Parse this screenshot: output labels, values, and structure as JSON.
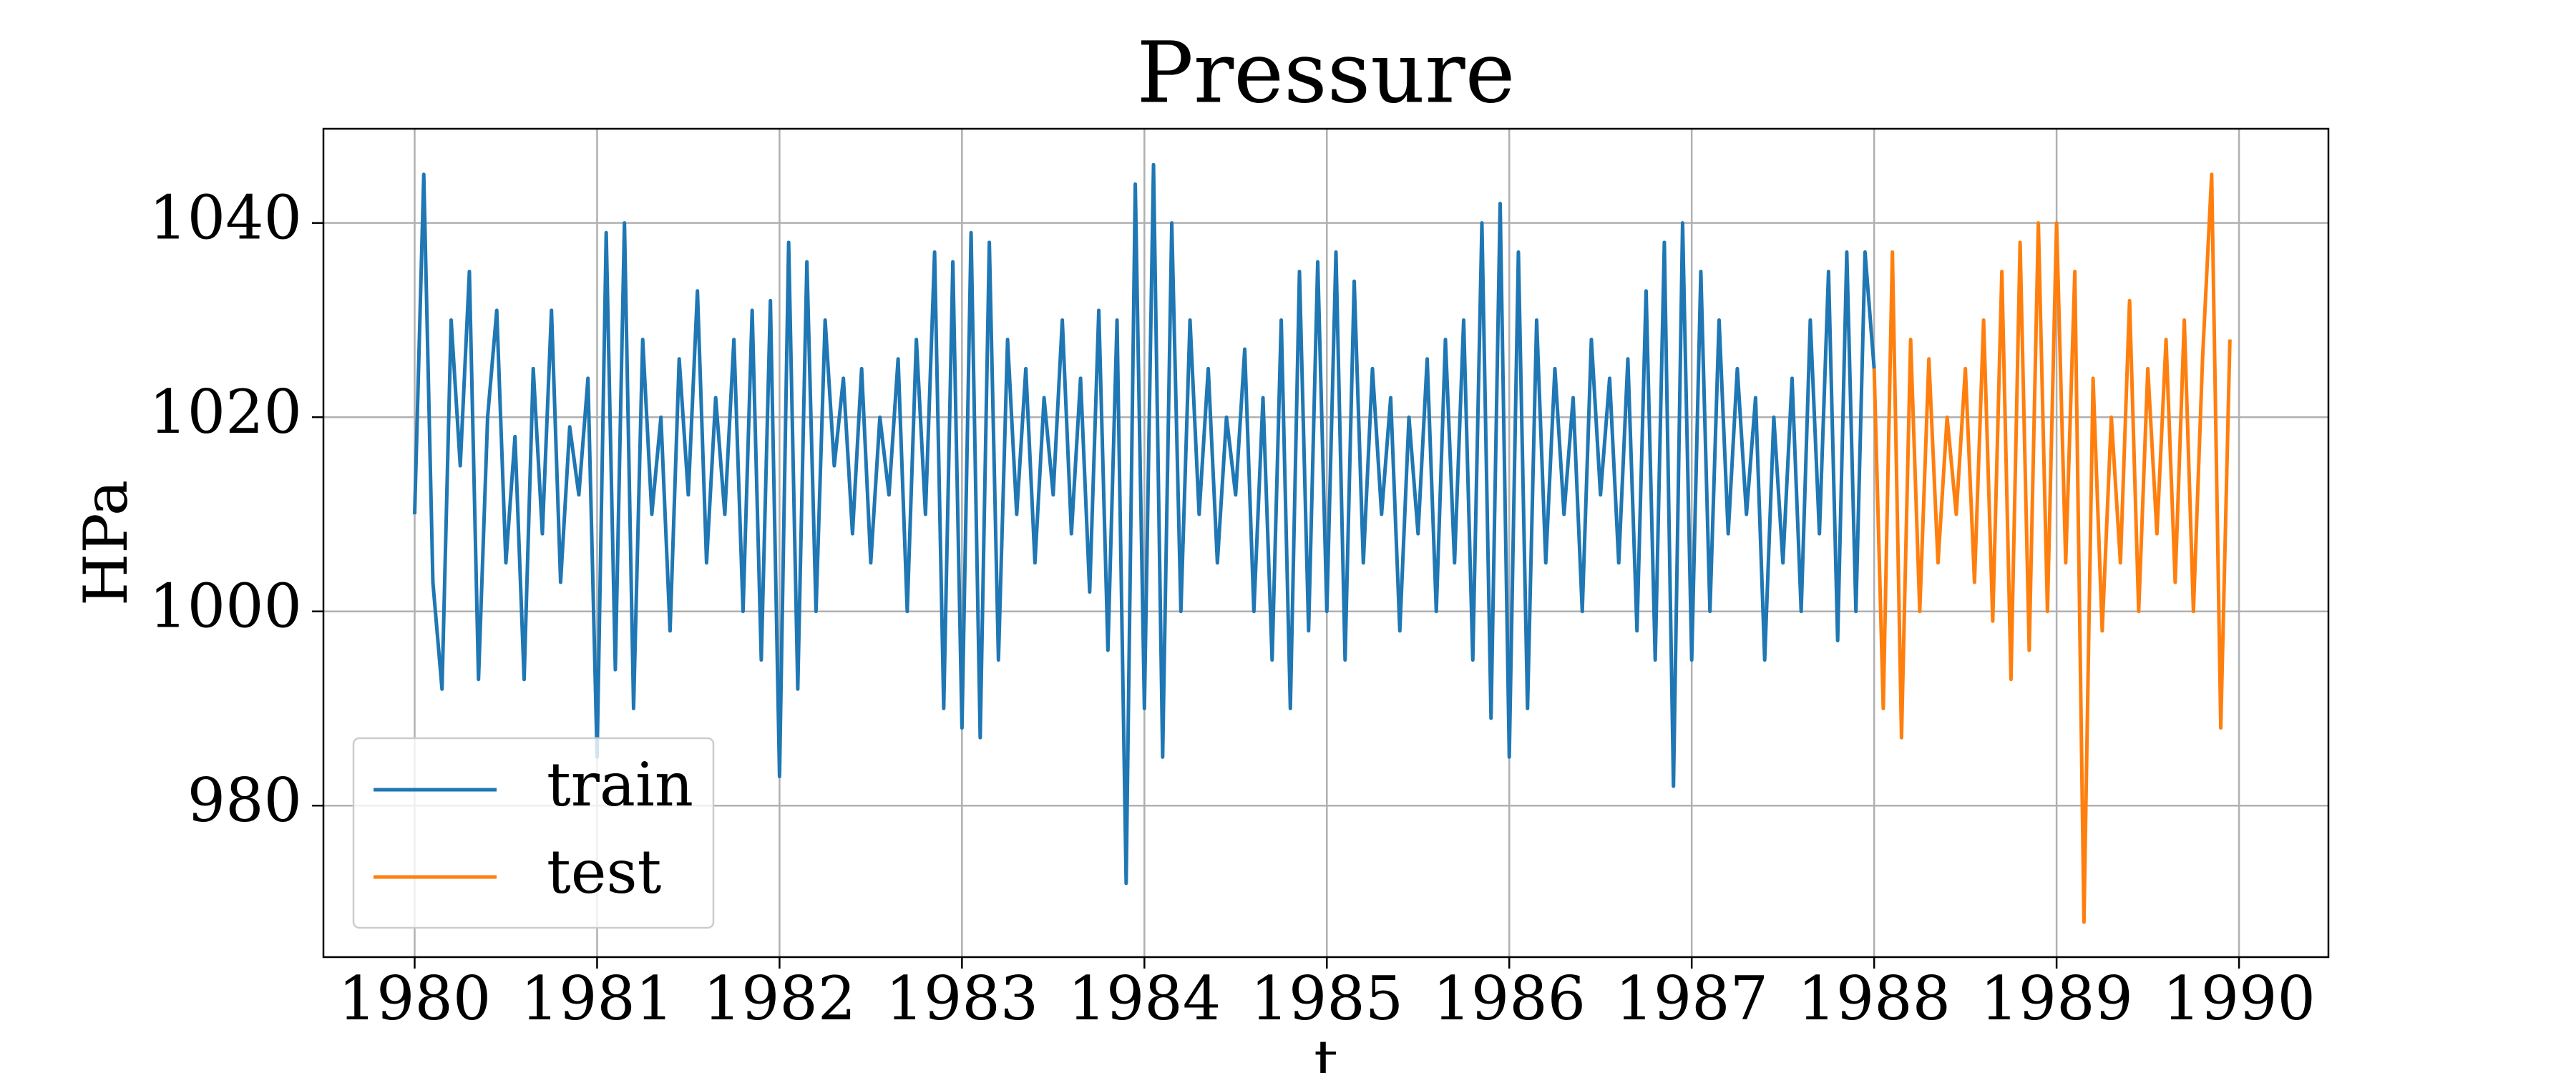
{
  "chart_data": {
    "type": "line",
    "title": "Pressure",
    "x_label": "t",
    "y_label": "HPa",
    "xlim": [
      1979.5,
      1990.49
    ],
    "ylim": [
      964.4,
      1049.7
    ],
    "xticks": [
      1980,
      1981,
      1982,
      1983,
      1984,
      1985,
      1986,
      1987,
      1988,
      1989,
      1990
    ],
    "yticks": [
      980,
      1000,
      1020,
      1040
    ],
    "grid": true,
    "legend": "lower left",
    "series": [
      {
        "name": "train",
        "color": "#1f77b4",
        "x": [
          1980.0,
          1980.05,
          1980.1,
          1980.15,
          1980.2,
          1980.25,
          1980.3,
          1980.35,
          1980.4,
          1980.45,
          1980.5,
          1980.55,
          1980.6,
          1980.65,
          1980.7,
          1980.75,
          1980.8,
          1980.85,
          1980.9,
          1980.95,
          1981.0,
          1981.05,
          1981.1,
          1981.15,
          1981.2,
          1981.25,
          1981.3,
          1981.35,
          1981.4,
          1981.45,
          1981.5,
          1981.55,
          1981.6,
          1981.65,
          1981.7,
          1981.75,
          1981.8,
          1981.85,
          1981.9,
          1981.95,
          1982.0,
          1982.05,
          1982.1,
          1982.15,
          1982.2,
          1982.25,
          1982.3,
          1982.35,
          1982.4,
          1982.45,
          1982.5,
          1982.55,
          1982.6,
          1982.65,
          1982.7,
          1982.75,
          1982.8,
          1982.85,
          1982.9,
          1982.95,
          1983.0,
          1983.05,
          1983.1,
          1983.15,
          1983.2,
          1983.25,
          1983.3,
          1983.35,
          1983.4,
          1983.45,
          1983.5,
          1983.55,
          1983.6,
          1983.65,
          1983.7,
          1983.75,
          1983.8,
          1983.85,
          1983.9,
          1983.95,
          1984.0,
          1984.05,
          1984.1,
          1984.15,
          1984.2,
          1984.25,
          1984.3,
          1984.35,
          1984.4,
          1984.45,
          1984.5,
          1984.55,
          1984.6,
          1984.65,
          1984.7,
          1984.75,
          1984.8,
          1984.85,
          1984.9,
          1984.95,
          1985.0,
          1985.05,
          1985.1,
          1985.15,
          1985.2,
          1985.25,
          1985.3,
          1985.35,
          1985.4,
          1985.45,
          1985.5,
          1985.55,
          1985.6,
          1985.65,
          1985.7,
          1985.75,
          1985.8,
          1985.85,
          1985.9,
          1985.95,
          1986.0,
          1986.05,
          1986.1,
          1986.15,
          1986.2,
          1986.25,
          1986.3,
          1986.35,
          1986.4,
          1986.45,
          1986.5,
          1986.55,
          1986.6,
          1986.65,
          1986.7,
          1986.75,
          1986.8,
          1986.85,
          1986.9,
          1986.95,
          1987.0,
          1987.05,
          1987.1,
          1987.15,
          1987.2,
          1987.25,
          1987.3,
          1987.35,
          1987.4,
          1987.45,
          1987.5,
          1987.55,
          1987.6,
          1987.65,
          1987.7,
          1987.75,
          1987.8,
          1987.85,
          1987.9,
          1987.95,
          1988.0
        ],
        "values": [
          1010,
          1045,
          1003,
          992,
          1030,
          1015,
          1035,
          993,
          1020,
          1031,
          1005,
          1018,
          993,
          1025,
          1008,
          1031,
          1003,
          1019,
          1012,
          1024,
          985,
          1039,
          994,
          1040,
          990,
          1028,
          1010,
          1020,
          998,
          1026,
          1012,
          1033,
          1005,
          1022,
          1010,
          1028,
          1000,
          1031,
          995,
          1032,
          983,
          1038,
          992,
          1036,
          1000,
          1030,
          1015,
          1024,
          1008,
          1025,
          1005,
          1020,
          1012,
          1026,
          1000,
          1028,
          1010,
          1037,
          990,
          1036,
          988,
          1039,
          987,
          1038,
          995,
          1028,
          1010,
          1025,
          1005,
          1022,
          1012,
          1030,
          1008,
          1024,
          1002,
          1031,
          996,
          1030,
          972,
          1044,
          990,
          1046,
          985,
          1040,
          1000,
          1030,
          1010,
          1025,
          1005,
          1020,
          1012,
          1027,
          1000,
          1022,
          995,
          1030,
          990,
          1035,
          998,
          1036,
          1000,
          1037,
          995,
          1034,
          1005,
          1025,
          1010,
          1022,
          998,
          1020,
          1008,
          1026,
          1000,
          1028,
          1005,
          1030,
          995,
          1040,
          989,
          1042,
          985,
          1037,
          990,
          1030,
          1005,
          1025,
          1010,
          1022,
          1000,
          1028,
          1012,
          1024,
          1005,
          1026,
          998,
          1033,
          995,
          1038,
          982,
          1040,
          995,
          1035,
          1000,
          1030,
          1008,
          1025,
          1010,
          1022,
          995,
          1020,
          1005,
          1024,
          1000,
          1030,
          1008,
          1035,
          997,
          1037,
          1000,
          1037,
          1025
        ]
      },
      {
        "name": "test",
        "color": "#ff7f0e",
        "x": [
          1988.0,
          1988.05,
          1988.1,
          1988.15,
          1988.2,
          1988.25,
          1988.3,
          1988.35,
          1988.4,
          1988.45,
          1988.5,
          1988.55,
          1988.6,
          1988.65,
          1988.7,
          1988.75,
          1988.8,
          1988.85,
          1988.9,
          1988.95,
          1989.0,
          1989.05,
          1989.1,
          1989.15,
          1989.2,
          1989.25,
          1989.3,
          1989.35,
          1989.4,
          1989.45,
          1989.5,
          1989.55,
          1989.6,
          1989.65,
          1989.7,
          1989.75,
          1989.8,
          1989.85,
          1989.9,
          1989.95
        ],
        "values": [
          1025,
          990,
          1037,
          987,
          1028,
          1000,
          1026,
          1005,
          1020,
          1010,
          1025,
          1003,
          1030,
          999,
          1035,
          993,
          1038,
          996,
          1040,
          1000,
          1040,
          1005,
          1035,
          968,
          1024,
          998,
          1020,
          1005,
          1032,
          1000,
          1025,
          1008,
          1028,
          1003,
          1030,
          1000,
          1026,
          1045,
          988,
          1028
        ]
      }
    ]
  }
}
